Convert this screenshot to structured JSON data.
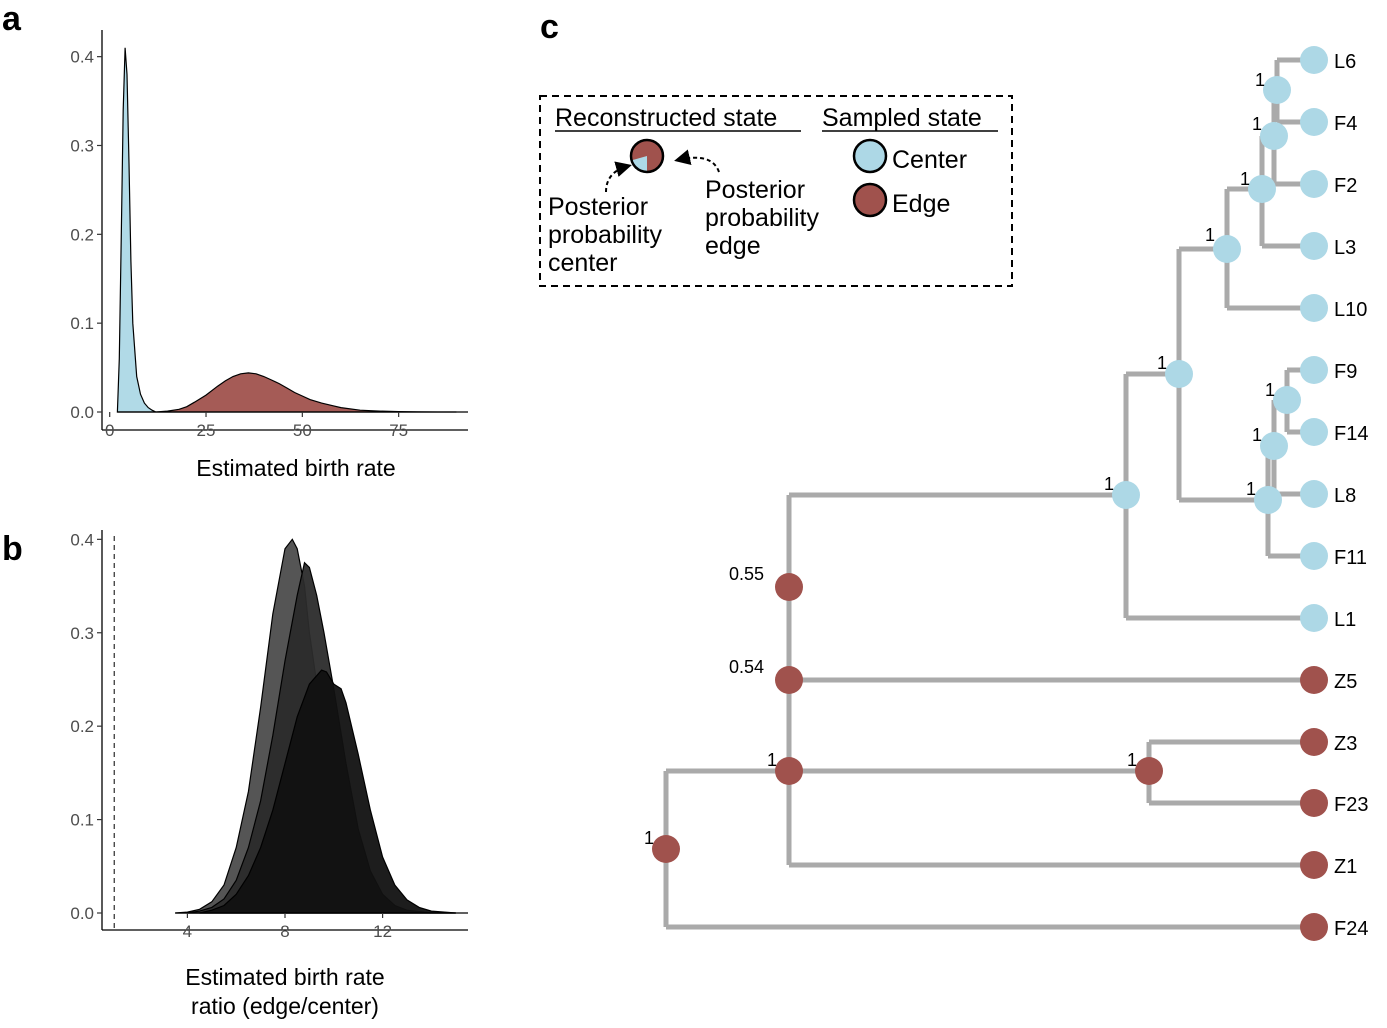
{
  "panels": {
    "a": "a",
    "b": "b",
    "c": "c"
  },
  "colors": {
    "center": "#add8e6",
    "edge": "#a0524d",
    "branch": "#aaaaaa",
    "birth_ratio_1": "#555555",
    "birth_ratio_2": "#2b2b2b",
    "birth_ratio_3": "#111111"
  },
  "chart_data": [
    {
      "id": "a",
      "type": "area",
      "xlabel": "Estimated birth rate",
      "ylabel": "",
      "xlim": [
        -2,
        93
      ],
      "ylim": [
        0,
        0.43
      ],
      "xticks": [
        0,
        25,
        50,
        75
      ],
      "yticks": [
        0.0,
        0.1,
        0.2,
        0.3,
        0.4
      ],
      "series": [
        {
          "color": "#add8e6",
          "x": [
            2,
            2.5,
            3.0,
            3.5,
            4.0,
            4.5,
            5.0,
            5.5,
            6.0,
            7.0,
            8.0,
            9.0,
            10,
            11,
            12
          ],
          "y": [
            0,
            0.06,
            0.2,
            0.34,
            0.41,
            0.38,
            0.28,
            0.17,
            0.1,
            0.04,
            0.02,
            0.01,
            0.005,
            0.002,
            0
          ]
        },
        {
          "color": "#a0524d",
          "x": [
            12,
            15,
            18,
            20,
            22,
            25,
            28,
            30,
            32,
            34,
            36,
            38,
            40,
            42,
            44,
            46,
            48,
            50,
            52,
            55,
            58,
            60,
            65,
            70,
            75,
            80,
            85,
            90
          ],
          "y": [
            0,
            0.001,
            0.003,
            0.006,
            0.011,
            0.019,
            0.029,
            0.035,
            0.04,
            0.043,
            0.044,
            0.043,
            0.04,
            0.036,
            0.032,
            0.027,
            0.022,
            0.018,
            0.014,
            0.01,
            0.007,
            0.005,
            0.002,
            0.001,
            0.0005,
            0.0002,
            0,
            0
          ]
        }
      ]
    },
    {
      "id": "b",
      "type": "area",
      "xlabel": "Estimated birth rate ratio (edge/center)",
      "xlabel_lines": [
        "Estimated birth rate",
        "ratio (edge/center)"
      ],
      "ylabel": "",
      "xlim": [
        0.5,
        15.5
      ],
      "ylim": [
        0,
        0.41
      ],
      "xticks": [
        4,
        8,
        12
      ],
      "yticks": [
        0.0,
        0.1,
        0.2,
        0.3,
        0.4
      ],
      "reference_line_x": 1,
      "series": [
        {
          "color": "#555555",
          "x": [
            3.5,
            4,
            4.5,
            5,
            5.5,
            6,
            6.5,
            7,
            7.5,
            8,
            8.3,
            8.5,
            8.8,
            9,
            9.5,
            10,
            10.5,
            11,
            11.5,
            12,
            12.5,
            13,
            13.5,
            14,
            15
          ],
          "y": [
            0,
            0.001,
            0.004,
            0.012,
            0.03,
            0.07,
            0.13,
            0.22,
            0.32,
            0.39,
            0.4,
            0.39,
            0.35,
            0.3,
            0.21,
            0.13,
            0.07,
            0.035,
            0.015,
            0.007,
            0.003,
            0.001,
            0,
            0,
            0
          ]
        },
        {
          "color": "#2b2b2b",
          "x": [
            4,
            4.5,
            5,
            5.5,
            6,
            6.5,
            7,
            7.5,
            8,
            8.5,
            8.8,
            9,
            9.3,
            9.6,
            10,
            10.5,
            11,
            11.5,
            12,
            12.5,
            13,
            14,
            15
          ],
          "y": [
            0,
            0.002,
            0.006,
            0.015,
            0.035,
            0.07,
            0.12,
            0.19,
            0.27,
            0.34,
            0.375,
            0.37,
            0.34,
            0.3,
            0.24,
            0.16,
            0.09,
            0.045,
            0.02,
            0.008,
            0.003,
            0,
            0
          ]
        },
        {
          "color": "#111111",
          "x": [
            4.5,
            5,
            5.5,
            6,
            6.5,
            7,
            7.5,
            8,
            8.5,
            9,
            9.5,
            9.7,
            10,
            10.3,
            10.5,
            11,
            11.5,
            12,
            12.5,
            13,
            13.5,
            14,
            15
          ],
          "y": [
            0,
            0.003,
            0.008,
            0.02,
            0.04,
            0.07,
            0.11,
            0.16,
            0.21,
            0.245,
            0.26,
            0.258,
            0.245,
            0.24,
            0.225,
            0.17,
            0.11,
            0.06,
            0.03,
            0.014,
            0.006,
            0.002,
            0
          ]
        }
      ]
    },
    {
      "id": "c",
      "type": "tree",
      "legend": {
        "reconstructed_title": "Reconstructed state",
        "sampled_title": "Sampled state",
        "center_label": "Center",
        "edge_label": "Edge",
        "center_prob_lines": [
          "Posterior",
          "probability",
          "center"
        ],
        "edge_prob_lines": [
          "Posterior",
          "probability",
          "edge"
        ]
      },
      "tips": [
        {
          "label": "L6",
          "state": "center"
        },
        {
          "label": "F4",
          "state": "center"
        },
        {
          "label": "F2",
          "state": "center"
        },
        {
          "label": "L3",
          "state": "center"
        },
        {
          "label": "L10",
          "state": "center"
        },
        {
          "label": "F9",
          "state": "center"
        },
        {
          "label": "F14",
          "state": "center"
        },
        {
          "label": "L8",
          "state": "center"
        },
        {
          "label": "F11",
          "state": "center"
        },
        {
          "label": "L1",
          "state": "center"
        },
        {
          "label": "Z5",
          "state": "edge"
        },
        {
          "label": "Z3",
          "state": "edge"
        },
        {
          "label": "F23",
          "state": "edge"
        },
        {
          "label": "Z1",
          "state": "edge"
        },
        {
          "label": "F24",
          "state": "edge"
        }
      ],
      "nodes": [
        {
          "id": "n1",
          "support": "1",
          "state": "edge"
        },
        {
          "id": "n2",
          "support": "1",
          "state": "edge"
        },
        {
          "id": "n3",
          "support": "0.54",
          "state": "edge"
        },
        {
          "id": "n4",
          "support": "0.55",
          "state": "edge"
        },
        {
          "id": "n5",
          "support": "1",
          "state": "center"
        },
        {
          "id": "n6",
          "support": "1",
          "state": "center"
        },
        {
          "id": "n7",
          "support": "1",
          "state": "center"
        },
        {
          "id": "n8",
          "support": "1",
          "state": "center"
        },
        {
          "id": "n9",
          "support": "1",
          "state": "center"
        },
        {
          "id": "n10",
          "support": "1",
          "state": "center"
        },
        {
          "id": "n11",
          "support": "1",
          "state": "center"
        },
        {
          "id": "n12",
          "support": "1",
          "state": "center"
        },
        {
          "id": "n13",
          "support": "1",
          "state": "center"
        },
        {
          "id": "n14",
          "support": "1",
          "state": "edge"
        }
      ]
    }
  ]
}
